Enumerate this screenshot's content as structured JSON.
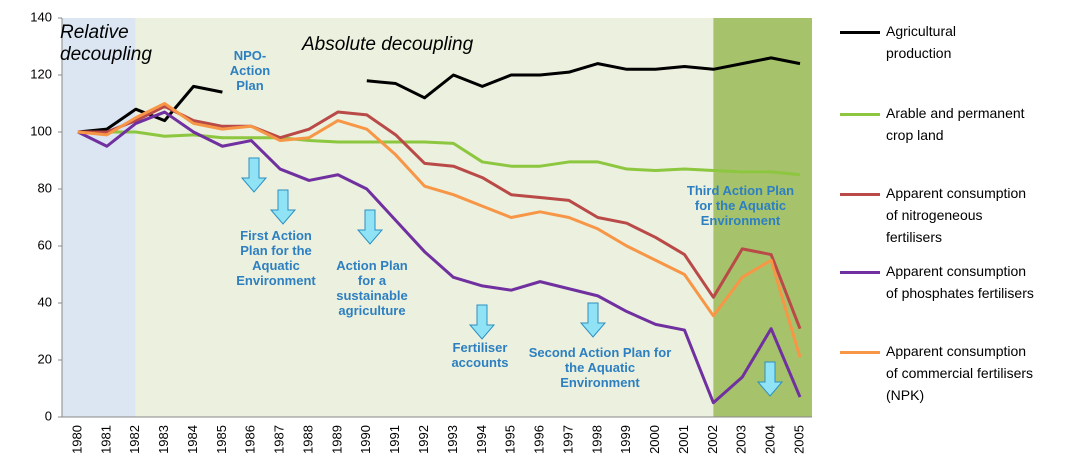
{
  "chart_data": {
    "type": "line",
    "categories": [
      "1980",
      "1981",
      "1982",
      "1983",
      "1984",
      "1985",
      "1986",
      "1987",
      "1988",
      "1989",
      "1990",
      "1991",
      "1992",
      "1993",
      "1994",
      "1995",
      "1996",
      "1997",
      "1998",
      "1999",
      "2000",
      "2001",
      "2002",
      "2003",
      "2004",
      "2005"
    ],
    "series": [
      {
        "name": "Agricultural production",
        "color": "#000000",
        "values": [
          100,
          101,
          108,
          104,
          116,
          114,
          null,
          null,
          null,
          null,
          118,
          117,
          112,
          120,
          116,
          120,
          120,
          121,
          124,
          122,
          122,
          123,
          122,
          124,
          126,
          124
        ]
      },
      {
        "name": "Arable and permanent crop land",
        "color": "#8dc63f",
        "values": [
          100,
          100,
          100,
          98.5,
          99,
          98,
          98,
          98,
          97,
          96.5,
          96.5,
          96.5,
          96.5,
          96,
          89.5,
          88,
          88,
          89.5,
          89.5,
          87,
          86.5,
          87,
          86.5,
          86,
          86,
          85
        ]
      },
      {
        "name": "Apparent consumption of nitrogeneous fertilisers",
        "color": "#b94a48",
        "values": [
          100,
          100,
          104,
          109,
          104,
          102,
          102,
          98,
          101,
          107,
          106,
          99,
          89,
          88,
          84,
          78,
          77,
          76,
          70,
          68,
          63,
          57,
          42,
          59,
          57,
          31
        ]
      },
      {
        "name": "Apparent consumption of phosphates fertilisers",
        "color": "#7030a0",
        "values": [
          100,
          95,
          103,
          107,
          100,
          95,
          97,
          87,
          83,
          85,
          80,
          69,
          58,
          49,
          46,
          44.5,
          47.5,
          45,
          42.5,
          37,
          32.5,
          30.5,
          5,
          14,
          31,
          7
        ]
      },
      {
        "name": "Apparent consumption of commercial fertilisers (NPK)",
        "color": "#f79646",
        "values": [
          100,
          99,
          105,
          110,
          103,
          101,
          102,
          97,
          98,
          104,
          101,
          92,
          81,
          78,
          74,
          70,
          72,
          70,
          66,
          60,
          55,
          50,
          35.5,
          49,
          55,
          21
        ]
      }
    ],
    "ylim": [
      0,
      140
    ],
    "yticks": [
      0,
      20,
      40,
      60,
      80,
      100,
      120,
      140
    ],
    "annotations": [
      "Relative decoupling",
      "Absolute decoupling",
      "NPO-Action Plan",
      "First Action Plan for the Aquatic Environment",
      "Action Plan for a sustainable agriculture",
      "Fertiliser accounts",
      "Second Action Plan for the Aquatic Environment",
      "Third Action Plan for the Aquatic Environment"
    ]
  }
}
